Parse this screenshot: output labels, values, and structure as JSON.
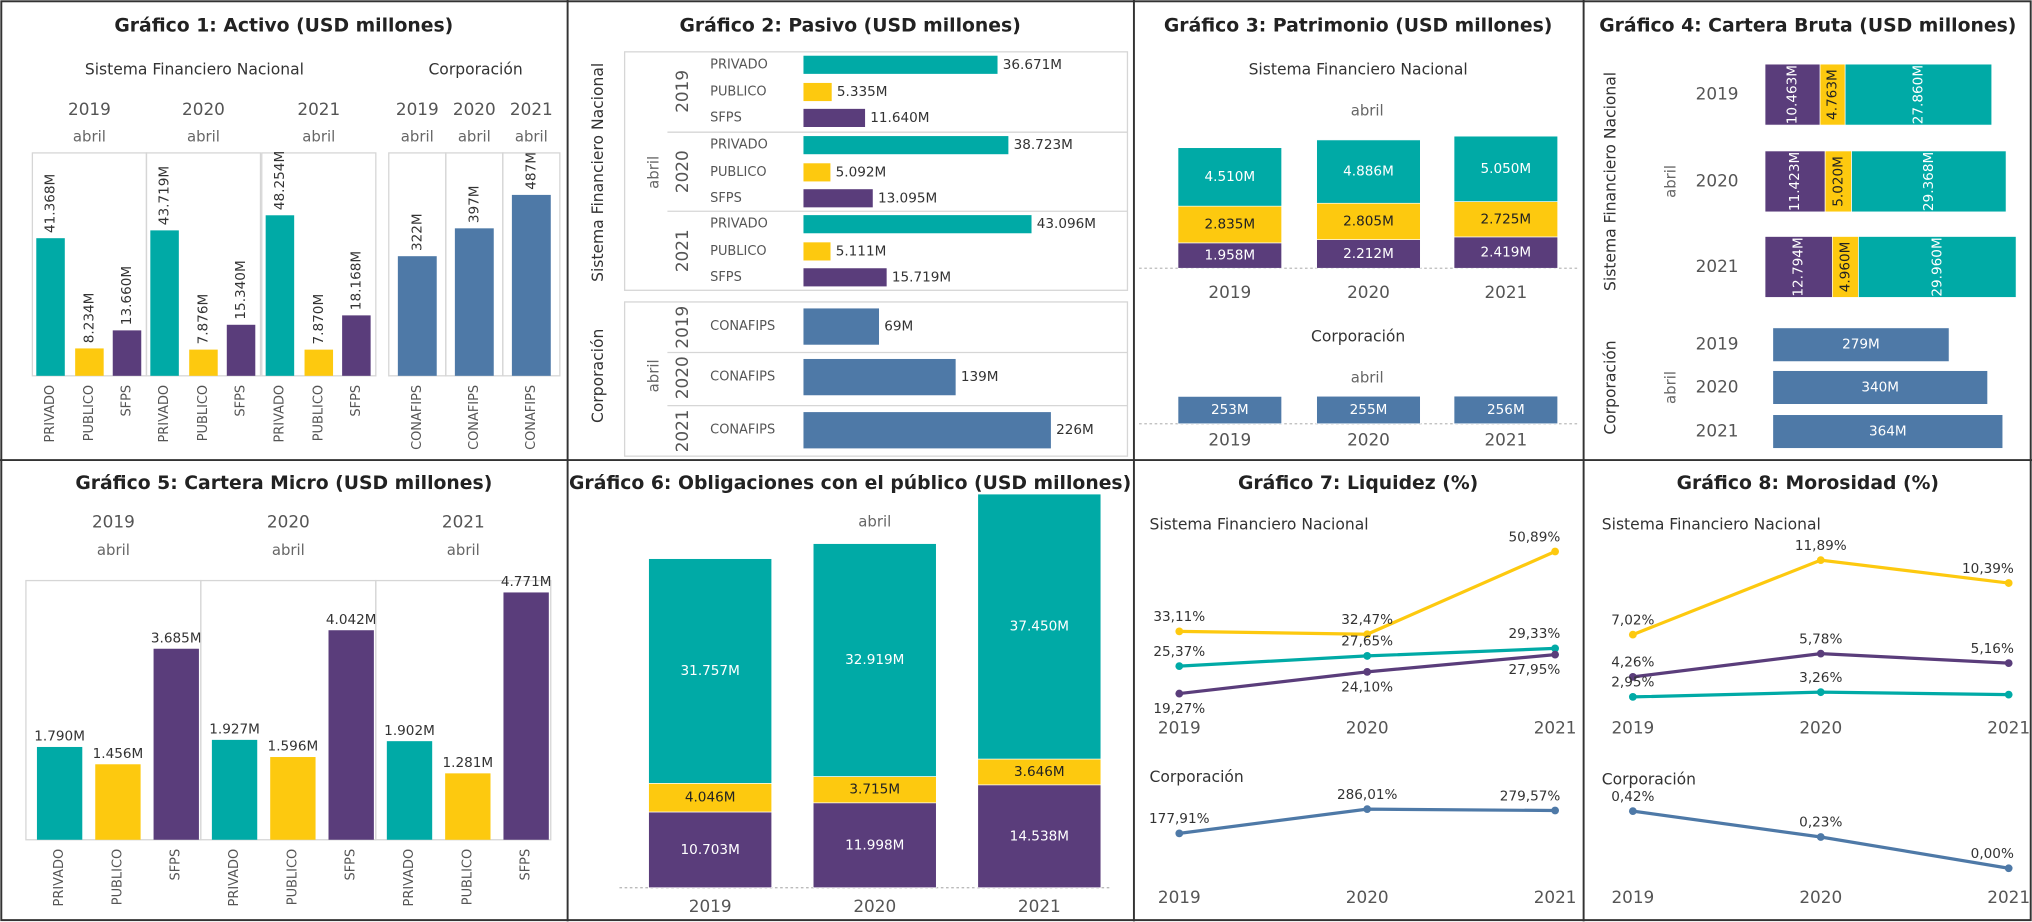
{
  "chart_data": [
    {
      "type": "bar",
      "title": "Gráfico 1: Activo (USD millones)",
      "colors": {
        "PRIVADO": "#00aaa6",
        "PUBLICO": "#fdc90f",
        "SFPS": "#5a3d7b",
        "CONAFIPS": "#4e79a7"
      },
      "sections": [
        {
          "label": "Sistema Financiero Nacional",
          "ylim": [
            0,
            67000
          ],
          "panels": [
            {
              "year": "2019",
              "month": "abril",
              "categories": [
                "PRIVADO",
                "PUBLICO",
                "SFPS"
              ],
              "values": [
                41368,
                8234,
                13660
              ],
              "value_labels": [
                "41.368M",
                "8.234M",
                "13.660M"
              ]
            },
            {
              "year": "2020",
              "month": "abril",
              "categories": [
                "PRIVADO",
                "PUBLICO",
                "SFPS"
              ],
              "values": [
                43719,
                7876,
                15340
              ],
              "value_labels": [
                "43.719M",
                "7.876M",
                "15.340M"
              ]
            },
            {
              "year": "2021",
              "month": "abril",
              "categories": [
                "PRIVADO",
                "PUBLICO",
                "SFPS"
              ],
              "values": [
                48254,
                7870,
                18168
              ],
              "value_labels": [
                "48.254M",
                "7.870M",
                "18.168M"
              ]
            }
          ]
        },
        {
          "label": "Corporación",
          "ylim": [
            0,
            600
          ],
          "panels": [
            {
              "year": "2019",
              "month": "abril",
              "categories": [
                "CONAFIPS"
              ],
              "values": [
                322
              ],
              "value_labels": [
                "322M"
              ]
            },
            {
              "year": "2020",
              "month": "abril",
              "categories": [
                "CONAFIPS"
              ],
              "values": [
                397
              ],
              "value_labels": [
                "397M"
              ]
            },
            {
              "year": "2021",
              "month": "abril",
              "categories": [
                "CONAFIPS"
              ],
              "values": [
                487
              ],
              "value_labels": [
                "487M"
              ]
            }
          ]
        }
      ]
    },
    {
      "type": "hbar",
      "title": "Gráfico 2: Pasivo (USD millones)",
      "colors": {
        "PRIVADO": "#00aaa6",
        "PUBLICO": "#fdc90f",
        "SFPS": "#5a3d7b",
        "CONAFIPS": "#4e79a7"
      },
      "sections": [
        {
          "label": "Sistema Financiero Nacional",
          "month": "abril",
          "xlim": [
            0,
            60000
          ],
          "panels": [
            {
              "year": "2019",
              "categories": [
                "PRIVADO",
                "PUBLICO",
                "SFPS"
              ],
              "values": [
                36671,
                5335,
                11640
              ],
              "value_labels": [
                "36.671M",
                "5.335M",
                "11.640M"
              ]
            },
            {
              "year": "2020",
              "categories": [
                "PRIVADO",
                "PUBLICO",
                "SFPS"
              ],
              "values": [
                38723,
                5092,
                13095
              ],
              "value_labels": [
                "38.723M",
                "5.092M",
                "13.095M"
              ]
            },
            {
              "year": "2021",
              "categories": [
                "PRIVADO",
                "PUBLICO",
                "SFPS"
              ],
              "values": [
                43096,
                5111,
                15719
              ],
              "value_labels": [
                "43.096M",
                "5.111M",
                "15.719M"
              ]
            }
          ]
        },
        {
          "label": "Corporación",
          "month": "abril",
          "xlim": [
            0,
            290
          ],
          "panels": [
            {
              "year": "2019",
              "categories": [
                "CONAFIPS"
              ],
              "values": [
                69
              ],
              "value_labels": [
                "69M"
              ]
            },
            {
              "year": "2020",
              "categories": [
                "CONAFIPS"
              ],
              "values": [
                139
              ],
              "value_labels": [
                "139M"
              ]
            },
            {
              "year": "2021",
              "categories": [
                "CONAFIPS"
              ],
              "values": [
                226
              ],
              "value_labels": [
                "226M"
              ]
            }
          ]
        }
      ]
    },
    {
      "type": "stacked",
      "title": "Gráfico 3: Patrimonio (USD millones)",
      "sections": [
        {
          "label": "Sistema Financiero Nacional",
          "month": "abril",
          "ylim": [
            0,
            11000
          ],
          "years": [
            "2019",
            "2020",
            "2021"
          ],
          "series": [
            {
              "color": "#5a3d7b",
              "values": [
                1958,
                2212,
                2419
              ],
              "value_labels": [
                "1.958M",
                "2.212M",
                "2.419M"
              ]
            },
            {
              "color": "#fdc90f",
              "values": [
                2835,
                2805,
                2725
              ],
              "value_labels": [
                "2.835M",
                "2.805M",
                "2.725M"
              ]
            },
            {
              "color": "#00aaa6",
              "values": [
                4510,
                4886,
                5050
              ],
              "value_labels": [
                "4.510M",
                "4.886M",
                "5.050M"
              ]
            }
          ]
        },
        {
          "label": "Corporación",
          "month": "abril",
          "ylim": [
            0,
            300
          ],
          "years": [
            "2019",
            "2020",
            "2021"
          ],
          "series": [
            {
              "color": "#4e79a7",
              "values": [
                253,
                255,
                256
              ],
              "value_labels": [
                "253M",
                "255M",
                "256M"
              ]
            }
          ]
        }
      ]
    },
    {
      "type": "hstacked",
      "title": "Gráfico 4: Cartera Bruta (USD millones)",
      "sections": [
        {
          "label": "Sistema Financiero Nacional",
          "month": "abril",
          "xlim": [
            0,
            50000
          ],
          "years": [
            "2019",
            "2020",
            "2021"
          ],
          "series": [
            {
              "color": "#5a3d7b",
              "values": [
                10463,
                11423,
                12794
              ],
              "value_labels": [
                "10.463M",
                "11.423M",
                "12.794M"
              ]
            },
            {
              "color": "#fdc90f",
              "values": [
                4763,
                5020,
                4960
              ],
              "value_labels": [
                "4.763M",
                "5.020M",
                "4.960M"
              ]
            },
            {
              "color": "#00aaa6",
              "values": [
                27860,
                29368,
                29960
              ],
              "value_labels": [
                "27.860M",
                "29.368M",
                "29.960M"
              ]
            }
          ]
        },
        {
          "label": "Corporación",
          "month": "abril",
          "xlim": [
            0,
            400
          ],
          "years": [
            "2019",
            "2020",
            "2021"
          ],
          "series": [
            {
              "color": "#4e79a7",
              "values": [
                279,
                340,
                364
              ],
              "value_labels": [
                "279M",
                "340M",
                "364M"
              ]
            }
          ]
        }
      ]
    },
    {
      "type": "bar",
      "title": "Gráfico 5: Cartera Micro (USD millones)",
      "colors": {
        "PRIVADO": "#00aaa6",
        "PUBLICO": "#fdc90f",
        "SFPS": "#5a3d7b"
      },
      "sections": [
        {
          "ylim": [
            0,
            5000
          ],
          "panels": [
            {
              "year": "2019",
              "month": "abril",
              "categories": [
                "PRIVADO",
                "PUBLICO",
                "SFPS"
              ],
              "values": [
                1790,
                1456,
                3685
              ],
              "value_labels": [
                "1.790M",
                "1.456M",
                "3.685M"
              ]
            },
            {
              "year": "2020",
              "month": "abril",
              "categories": [
                "PRIVADO",
                "PUBLICO",
                "SFPS"
              ],
              "values": [
                1927,
                1596,
                4042
              ],
              "value_labels": [
                "1.927M",
                "1.596M",
                "4.042M"
              ]
            },
            {
              "year": "2021",
              "month": "abril",
              "categories": [
                "PRIVADO",
                "PUBLICO",
                "SFPS"
              ],
              "values": [
                1902,
                1281,
                4771
              ],
              "value_labels": [
                "1.902M",
                "1.281M",
                "4.771M"
              ]
            }
          ]
        }
      ]
    },
    {
      "type": "stacked",
      "title": "Gráfico 6: Obligaciones con el público (USD millones)",
      "sections": [
        {
          "month": "abril",
          "ylim": [
            0,
            50000
          ],
          "years": [
            "2019",
            "2020",
            "2021"
          ],
          "series": [
            {
              "color": "#5a3d7b",
              "values": [
                10703,
                11998,
                14538
              ],
              "value_labels": [
                "10.703M",
                "11.998M",
                "14.538M"
              ]
            },
            {
              "color": "#fdc90f",
              "values": [
                4046,
                3715,
                3646
              ],
              "value_labels": [
                "4.046M",
                "3.715M",
                "3.646M"
              ]
            },
            {
              "color": "#00aaa6",
              "values": [
                31757,
                32919,
                37450
              ],
              "value_labels": [
                "31.757M",
                "32.919M",
                "37.450M"
              ]
            }
          ]
        }
      ]
    },
    {
      "type": "line",
      "title": "Gráfico 7: Liquidez (%)",
      "sections": [
        {
          "label": "Sistema Financiero Nacional",
          "ylim": [
            15,
            52.5
          ],
          "x": [
            "2019",
            "2020",
            "2021"
          ],
          "series": [
            {
              "color": "#fdc90f",
              "values": [
                33.11,
                32.47,
                50.89
              ],
              "value_labels": [
                "33,11%",
                "32,47%",
                "50,89%"
              ]
            },
            {
              "color": "#00aaa6",
              "values": [
                25.37,
                27.65,
                29.33
              ],
              "value_labels": [
                "25,37%",
                "27,65%",
                "29,33%"
              ]
            },
            {
              "color": "#5a3d7b",
              "values": [
                19.27,
                24.1,
                27.95
              ],
              "value_labels": [
                "19,27%",
                "24,10%",
                "27,95%"
              ]
            }
          ]
        },
        {
          "label": "Corporación",
          "ylim": [
            80,
            340
          ],
          "x": [
            "2019",
            "2020",
            "2021"
          ],
          "series": [
            {
              "color": "#4e79a7",
              "values": [
                177.91,
                286.01,
                279.57
              ],
              "value_labels": [
                "177,91%",
                "286,01%",
                "279,57%"
              ]
            }
          ]
        }
      ]
    },
    {
      "type": "line",
      "title": "Gráfico 8: Morosidad (%)",
      "sections": [
        {
          "label": "Sistema Financiero Nacional",
          "ylim": [
            2,
            12.5
          ],
          "x": [
            "2019",
            "2020",
            "2021"
          ],
          "series": [
            {
              "color": "#fdc90f",
              "values": [
                7.02,
                11.89,
                10.39
              ],
              "value_labels": [
                "7,02%",
                "11,89%",
                "10,39%"
              ]
            },
            {
              "color": "#5a3d7b",
              "values": [
                4.26,
                5.78,
                5.16
              ],
              "value_labels": [
                "4,26%",
                "5,78%",
                "5,16%"
              ]
            },
            {
              "color": "#00aaa6",
              "values": [
                2.95,
                3.26,
                3.1
              ],
              "value_labels": [
                "2,95%",
                "3,26%",
                null
              ]
            }
          ]
        },
        {
          "label": "Corporación",
          "ylim": [
            0,
            0.5
          ],
          "x": [
            "2019",
            "2020",
            "2021"
          ],
          "series": [
            {
              "color": "#4e79a7",
              "values": [
                0.42,
                0.23,
                0.0
              ],
              "value_labels": [
                "0,42%",
                "0,23%",
                "0,00%"
              ]
            }
          ]
        }
      ]
    }
  ]
}
